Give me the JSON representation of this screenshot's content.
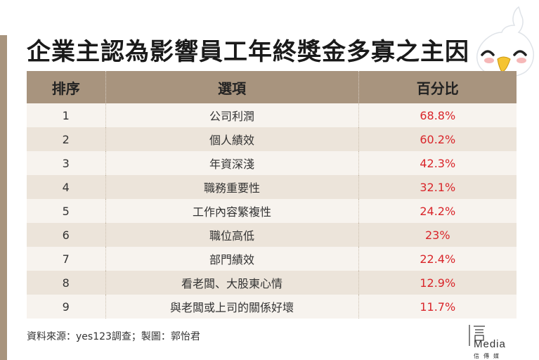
{
  "title": "企業主認為影響員工年終獎金多寡之主因",
  "table": {
    "headers": [
      "排序",
      "選項",
      "百分比"
    ]
  },
  "chart_data": {
    "type": "table",
    "title": "企業主認為影響員工年終獎金多寡之主因",
    "columns": [
      "排序",
      "選項",
      "百分比"
    ],
    "rows": [
      {
        "rank": "1",
        "option": "公司利潤",
        "percent": "68.8%"
      },
      {
        "rank": "2",
        "option": "個人績效",
        "percent": "60.2%"
      },
      {
        "rank": "3",
        "option": "年資深淺",
        "percent": "42.3%"
      },
      {
        "rank": "4",
        "option": "職務重要性",
        "percent": "32.1%"
      },
      {
        "rank": "5",
        "option": "工作內容繁複性",
        "percent": "24.2%"
      },
      {
        "rank": "6",
        "option": "職位高低",
        "percent": "23%"
      },
      {
        "rank": "7",
        "option": "部門績效",
        "percent": "22.4%"
      },
      {
        "rank": "8",
        "option": "看老闆、大股東心情",
        "percent": "12.9%"
      },
      {
        "rank": "9",
        "option": "與老闆或上司的關係好壞",
        "percent": "11.7%"
      }
    ]
  },
  "source": "資料來源：yes123調查；製圖：郭怡君",
  "logo": {
    "text": "Media",
    "subtext": "信 傳 媒"
  },
  "colors": {
    "header_bg": "#a8947e",
    "row_light": "#f7f3ee",
    "row_dark": "#ece4da",
    "percent_text": "#d9252a",
    "accent_bar": "#a8947e"
  },
  "icons": {
    "mascot": "white-bird-mascot-icon"
  }
}
